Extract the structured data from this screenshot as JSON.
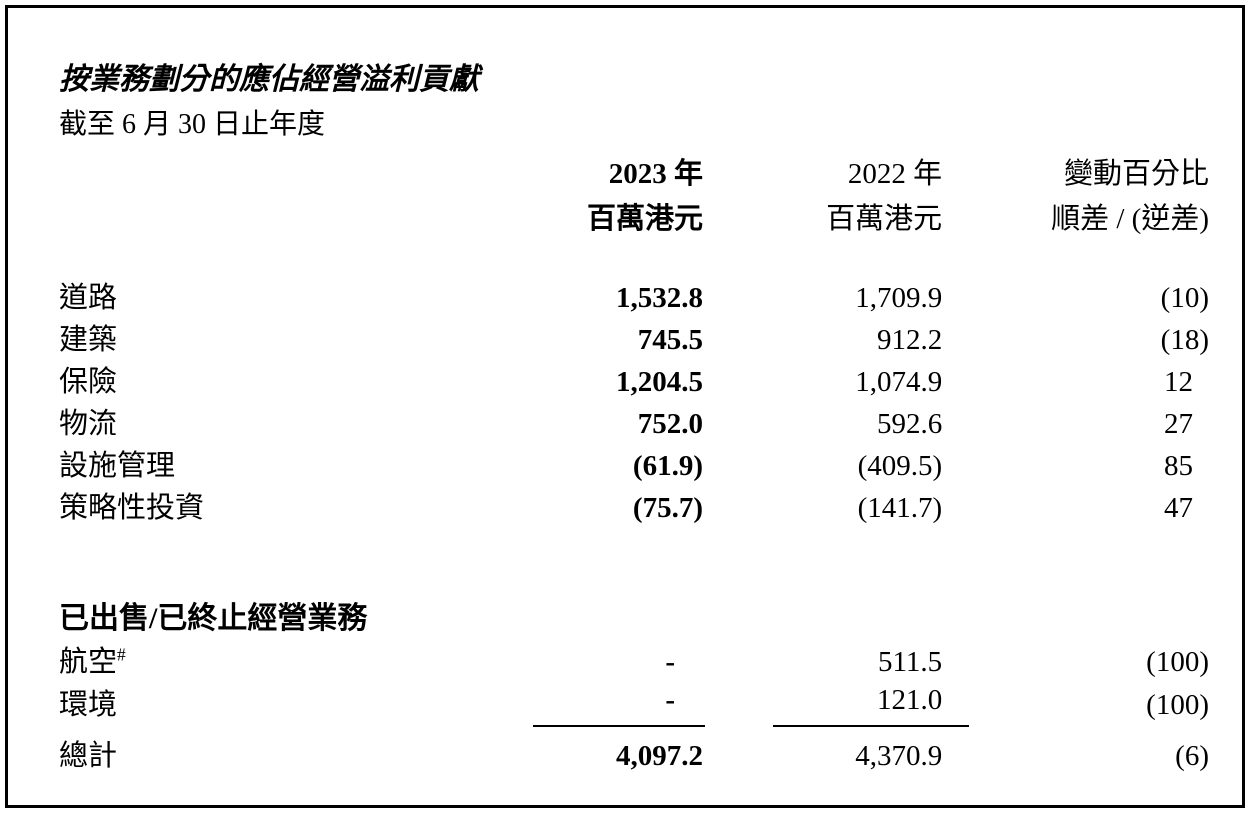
{
  "document": {
    "title": "按業務劃分的應佔經營溢利貢獻",
    "subtitle": "截至 6 月 30 日止年度"
  },
  "table": {
    "header": {
      "col_2023_year": "2023 年",
      "col_2023_unit": "百萬港元",
      "col_2022_year": "2022 年",
      "col_2022_unit": "百萬港元",
      "col_change_line1": "變動百分比",
      "col_change_line2": "順差 / (逆差)"
    },
    "continuing_rows": [
      {
        "label": "道路",
        "v2023": "1,532.8",
        "v2022": "1,709.9",
        "change": "(10)"
      },
      {
        "label": "建築",
        "v2023": "745.5",
        "v2022": "912.2",
        "change": "(18)"
      },
      {
        "label": "保險",
        "v2023": "1,204.5",
        "v2022": "1,074.9",
        "change": "12"
      },
      {
        "label": "物流",
        "v2023": "752.0",
        "v2022": "592.6",
        "change": "27"
      },
      {
        "label": "設施管理",
        "v2023": "(61.9)",
        "v2022": "(409.5)",
        "change": "85"
      },
      {
        "label": "策略性投資",
        "v2023": "(75.7)",
        "v2022": "(141.7)",
        "change": "47"
      }
    ],
    "discontinued": {
      "header": "已出售/已終止經營業務",
      "rows": [
        {
          "label": "航空",
          "sup": "#",
          "v2023": "-",
          "v2022": "511.5",
          "change": "(100)"
        },
        {
          "label": "環境",
          "v2023": "-",
          "v2022": "121.0",
          "change": "(100)",
          "rule": true
        },
        {
          "label": "總計",
          "v2023": "4,097.2",
          "v2022": "4,370.9",
          "change": "(6)",
          "total": true
        }
      ]
    }
  },
  "colors": {
    "text": "#000000",
    "background": "#ffffff",
    "border": "#000000"
  }
}
